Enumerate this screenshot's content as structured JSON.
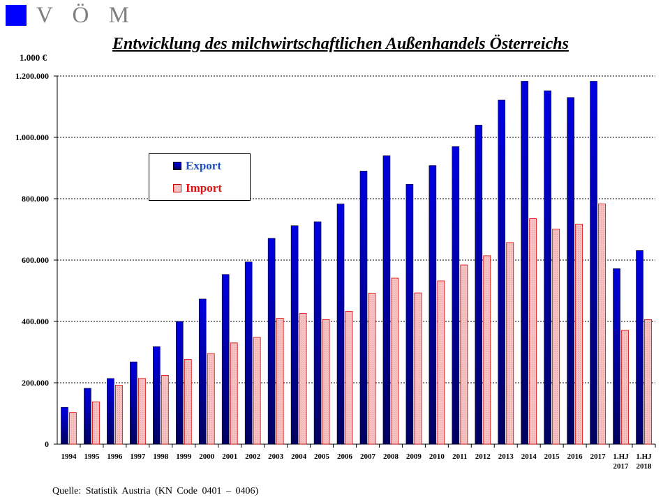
{
  "header": {
    "logo_text": "V Ö M",
    "logo_color": "#0000ff"
  },
  "chart_data": {
    "type": "bar",
    "title": "Entwicklung des milchwirtschaftlichen Außenhandels Österreichs",
    "unit_label": "1.000 €",
    "xlabel": "",
    "ylabel": "",
    "ylim": [
      0,
      1200000
    ],
    "yticks": [
      0,
      200000,
      400000,
      600000,
      800000,
      1000000,
      1200000
    ],
    "ytick_labels": [
      "0",
      "200.000",
      "400.000",
      "600.000",
      "800.000",
      "1.000.000",
      "1.200.000"
    ],
    "grid": true,
    "legend_position": "upper-left",
    "categories": [
      "1994",
      "1995",
      "1996",
      "1997",
      "1998",
      "1999",
      "2000",
      "2001",
      "2002",
      "2003",
      "2004",
      "2005",
      "2006",
      "2007",
      "2008",
      "2009",
      "2010",
      "2011",
      "2012",
      "2013",
      "2014",
      "2015",
      "2016",
      "2017",
      "1.HJ 2017",
      "1.HJ 2018"
    ],
    "category_lines": [
      [
        "1994"
      ],
      [
        "1995"
      ],
      [
        "1996"
      ],
      [
        "1997"
      ],
      [
        "1998"
      ],
      [
        "1999"
      ],
      [
        "2000"
      ],
      [
        "2001"
      ],
      [
        "2002"
      ],
      [
        "2003"
      ],
      [
        "2004"
      ],
      [
        "2005"
      ],
      [
        "2006"
      ],
      [
        "2007"
      ],
      [
        "2008"
      ],
      [
        "2009"
      ],
      [
        "2010"
      ],
      [
        "2011"
      ],
      [
        "2012"
      ],
      [
        "2013"
      ],
      [
        "2014"
      ],
      [
        "2015"
      ],
      [
        "2016"
      ],
      [
        "2017"
      ],
      [
        "1.HJ",
        "2017"
      ],
      [
        "1.HJ",
        "2018"
      ]
    ],
    "series": [
      {
        "name": "Export",
        "color": "#0000e0",
        "label_color": "#1f4fbf",
        "values": [
          120000,
          182000,
          214000,
          268000,
          318000,
          400000,
          473000,
          553000,
          594000,
          671000,
          712000,
          725000,
          783000,
          890000,
          940000,
          847000,
          908000,
          970000,
          1040000,
          1122000,
          1183000,
          1152000,
          1130000,
          1183000,
          572000,
          631000
        ]
      },
      {
        "name": "Import",
        "color": "#f4c2c2",
        "label_color": "#e01010",
        "values": [
          103000,
          138000,
          192000,
          214000,
          224000,
          276000,
          295000,
          330000,
          348000,
          410000,
          426000,
          406000,
          433000,
          492000,
          541000,
          493000,
          532000,
          584000,
          614000,
          657000,
          735000,
          701000,
          717000,
          783000,
          371000,
          406000
        ]
      }
    ]
  },
  "source": "Quelle:  Statistik  Austria  (KN Code 0401 – 0406)"
}
